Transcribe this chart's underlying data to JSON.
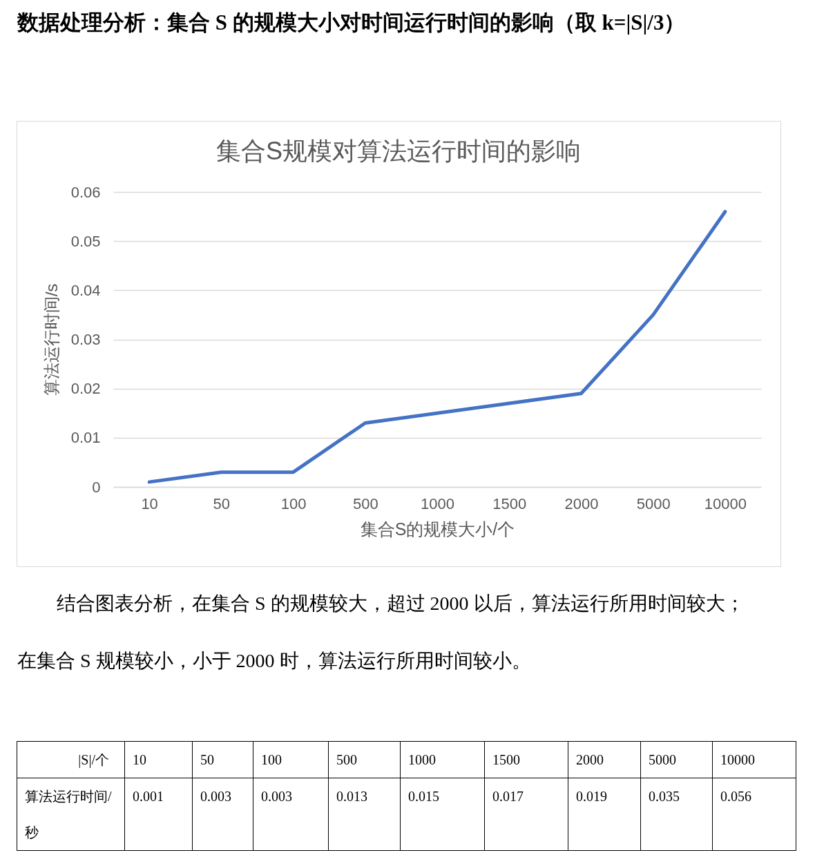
{
  "chart_data": {
    "type": "line",
    "title": "数据处理分析：集合 S 的规模大小对时间运行时间的影响（取 k=|S|/3）",
    "subtitle": "集合S规模对算法运行时间的影响",
    "xlabel": "集合S的规模大小/个",
    "ylabel": "算法运行时间/s",
    "categories": [
      "10",
      "50",
      "100",
      "500",
      "1000",
      "1500",
      "2000",
      "5000",
      "10000"
    ],
    "values": [
      0.001,
      0.003,
      0.003,
      0.013,
      0.015,
      0.017,
      0.019,
      0.035,
      0.056
    ],
    "color": "#4472c4",
    "ylim": [
      0,
      0.06
    ],
    "yticks": [
      0,
      0.01,
      0.02,
      0.03,
      0.04,
      0.05,
      0.06
    ],
    "grid": "y",
    "data_labels": true,
    "annotations": [
      "结合图表分析，在集合 S 的规模较大，超过 2000 以后，算法运行所用时间较大；",
      "在集合 S 规模较小，小于 2000 时，算法运行所用时间较小。",
      "|S|/个",
      "算法运行时间/秒"
    ]
  }
}
